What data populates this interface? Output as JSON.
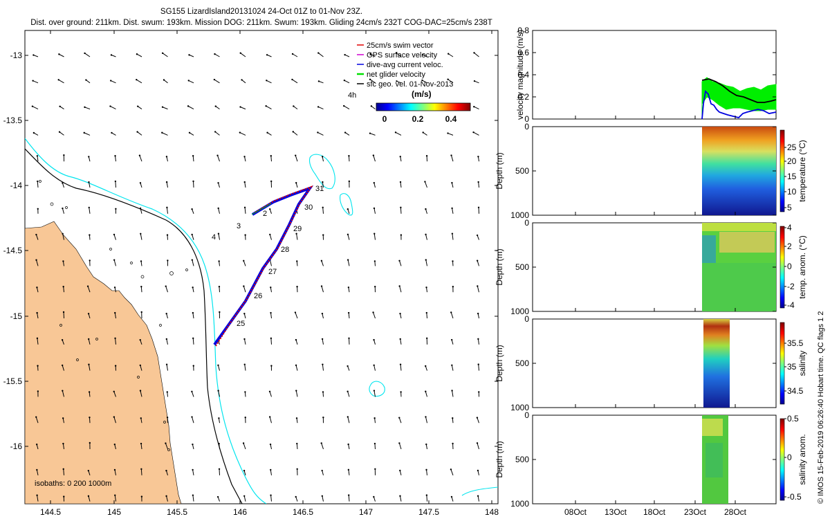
{
  "header": {
    "title_line1": "SG155 LizardIsland20131024 24-Oct 01Z to 01-Nov 23Z.",
    "title_line2": "Dist. over ground: 211km. Dist. swum: 193km. Mission DOG: 211km. Swum: 193km. Gliding 24cm/s 232T COG-DAC=25cm/s 238T"
  },
  "map": {
    "lon_ticks": [
      "144.5",
      "145",
      "145.5",
      "146",
      "146.5",
      "147",
      "147.5",
      "148"
    ],
    "lat_ticks": [
      "-13",
      "-13.5",
      "-14",
      "-14.5",
      "-15",
      "-15.5",
      "-16"
    ],
    "legend": [
      {
        "label": "25cm/s swim vector",
        "color": "#e00000"
      },
      {
        "label": "GPS surface velocity",
        "color": "#d000d0"
      },
      {
        "label": "dive-avg current veloc.",
        "color": "#0000e0"
      },
      {
        "label": "net glider velocity",
        "color": "#00e000"
      },
      {
        "label": "sfc geo. vel. 01-Nov-2013",
        "color": "#000000"
      }
    ],
    "legend_extra": "4h",
    "colorbar_unit": "(m/s)",
    "colorbar_ticks": [
      "0",
      "0.2",
      "0.4"
    ],
    "isobaths": "isobaths: 0   200  1000m",
    "track_day_labels": [
      "31",
      "2",
      "3",
      "4",
      "30",
      "29",
      "28",
      "27",
      "26",
      "25"
    ],
    "land_color": "#f8c796",
    "isobath_200_color": "#00e5ee"
  },
  "panels": {
    "p1": {
      "ylabel": "velocity magnitude (m/s)",
      "yticks": [
        "0",
        "0.2",
        "0.4",
        "0.6",
        "0.8"
      ]
    },
    "p2": {
      "ylabel": "Depth (m)",
      "yticks": [
        "0",
        "500",
        "1000"
      ],
      "cblabel": "temperature (°C)",
      "cbticks": [
        "25",
        "20",
        "15",
        "10",
        "5"
      ]
    },
    "p3": {
      "ylabel": "Depth (m)",
      "yticks": [
        "0",
        "500",
        "1000"
      ],
      "cblabel": "temp. anom. (°C)",
      "cbticks": [
        "4",
        "2",
        "0",
        "-2",
        "-4"
      ]
    },
    "p4": {
      "ylabel": "Depth (m)",
      "yticks": [
        "0",
        "500",
        "1000"
      ],
      "cblabel": "salinity",
      "cbticks": [
        "35.5",
        "35",
        "34.5"
      ]
    },
    "p5": {
      "ylabel": "Depth (m)",
      "yticks": [
        "0",
        "500",
        "1000"
      ],
      "cblabel": "salinity anom.",
      "cbticks": [
        "0.5",
        "0",
        "-0.5"
      ]
    },
    "xticks": [
      "08Oct",
      "13Oct",
      "18Oct",
      "23Oct",
      "28Oct"
    ]
  },
  "footer": {
    "credit": "© IMOS 15-Feb-2019 06:26:40 Hobart time. QC flags 1  2"
  }
}
